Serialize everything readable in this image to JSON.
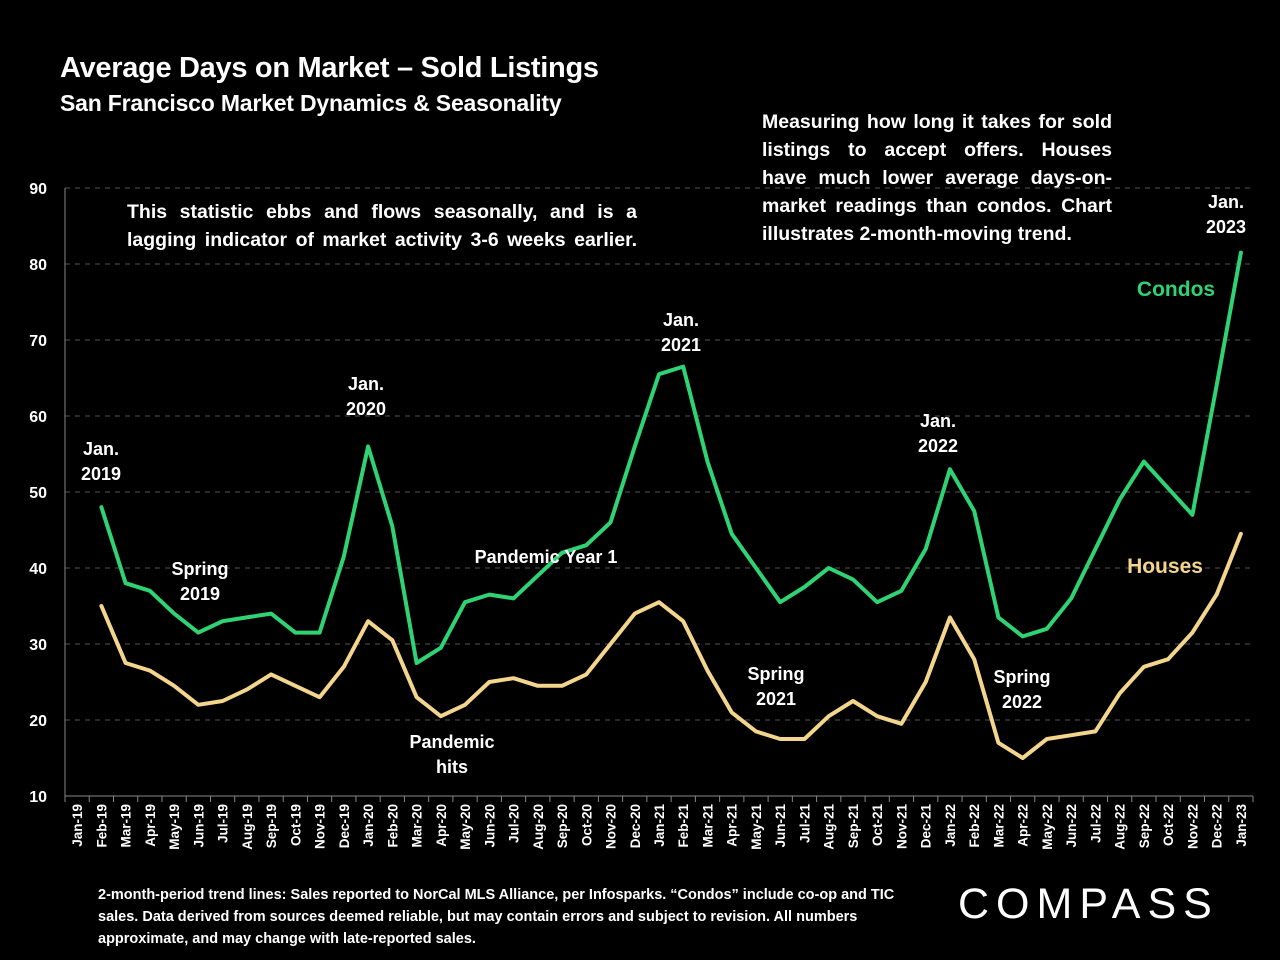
{
  "chart_data": {
    "type": "line",
    "title": "Average Days on Market – Sold Listings",
    "subtitle": "San Francisco Market Dynamics & Seasonality",
    "ylim": [
      10,
      90
    ],
    "yticks": [
      10,
      20,
      30,
      40,
      50,
      60,
      70,
      80,
      90
    ],
    "grid": "horizontal-dashed",
    "categories": [
      "Jan-19",
      "Feb-19",
      "Mar-19",
      "Apr-19",
      "May-19",
      "Jun-19",
      "Jul-19",
      "Aug-19",
      "Sep-19",
      "Oct-19",
      "Nov-19",
      "Dec-19",
      "Jan-20",
      "Feb-20",
      "Mar-20",
      "Apr-20",
      "May-20",
      "Jun-20",
      "Jul-20",
      "Aug-20",
      "Sep-20",
      "Oct-20",
      "Nov-20",
      "Dec-20",
      "Jan-21",
      "Feb-21",
      "Mar-21",
      "Apr-21",
      "May-21",
      "Jun-21",
      "Jul-21",
      "Aug-21",
      "Sep-21",
      "Oct-21",
      "Nov-21",
      "Dec-21",
      "Jan-22",
      "Feb-22",
      "Mar-22",
      "Apr-22",
      "May-22",
      "Jun-22",
      "Jul-22",
      "Aug-22",
      "Sep-22",
      "Oct-22",
      "Nov-22",
      "Dec-22",
      "Jan-23"
    ],
    "series": [
      {
        "name": "Condos",
        "color": "#2fd374",
        "values": [
          null,
          48,
          38,
          37,
          34,
          31.5,
          33,
          33.5,
          34,
          31.5,
          31.5,
          41.5,
          56,
          45.5,
          27.5,
          29.5,
          35.5,
          36.5,
          36,
          39,
          42,
          43,
          46,
          56,
          65.5,
          66.5,
          54,
          44.5,
          40,
          35.5,
          37.5,
          40,
          38.5,
          35.5,
          37,
          42.5,
          53,
          47.5,
          33.5,
          31,
          32,
          36,
          42.5,
          49,
          54,
          50.5,
          47,
          64,
          81.5
        ]
      },
      {
        "name": "Houses",
        "color": "#f4d58d",
        "values": [
          null,
          35,
          27.5,
          26.5,
          24.5,
          22,
          22.5,
          24,
          26,
          24.5,
          23,
          27,
          33,
          30.5,
          23,
          20.5,
          22,
          25,
          25.5,
          24.5,
          24.5,
          26,
          30,
          34,
          35.5,
          33,
          26.5,
          21,
          18.5,
          17.5,
          17.5,
          20.5,
          22.5,
          20.5,
          19.5,
          25,
          33.5,
          28,
          17,
          15,
          17.5,
          18,
          18.5,
          23.5,
          27,
          28,
          31.5,
          36.5,
          44.5
        ]
      }
    ],
    "annotations": [
      {
        "lines": [
          "Jan.",
          "2019"
        ]
      },
      {
        "lines": [
          "Spring",
          "2019"
        ]
      },
      {
        "lines": [
          "Jan.",
          "2020"
        ]
      },
      {
        "lines": [
          "Pandemic",
          "hits"
        ]
      },
      {
        "lines": [
          "Pandemic Year 1"
        ]
      },
      {
        "lines": [
          "Jan.",
          "2021"
        ]
      },
      {
        "lines": [
          "Spring",
          "2021"
        ]
      },
      {
        "lines": [
          "Jan.",
          "2022"
        ]
      },
      {
        "lines": [
          "Spring",
          "2022"
        ]
      },
      {
        "lines": [
          "Jan.",
          "2023"
        ]
      }
    ]
  },
  "notes": {
    "left": "This statistic ebbs and flows seasonally, and is a lagging indicator of market activity 3-6 weeks earlier.",
    "right": "Measuring how long it takes for sold listings to accept offers. Houses have much lower average days-on-market readings than condos. Chart illustrates 2-month-moving trend."
  },
  "footnote": "2-month-period trend lines: Sales reported to NorCal MLS Alliance, per Infosparks. “Condos” include co-op and TIC sales. Data derived from sources deemed reliable, but may contain errors and subject to revision. All numbers approximate, and may change with late-reported sales.",
  "logo": "COMPASS"
}
